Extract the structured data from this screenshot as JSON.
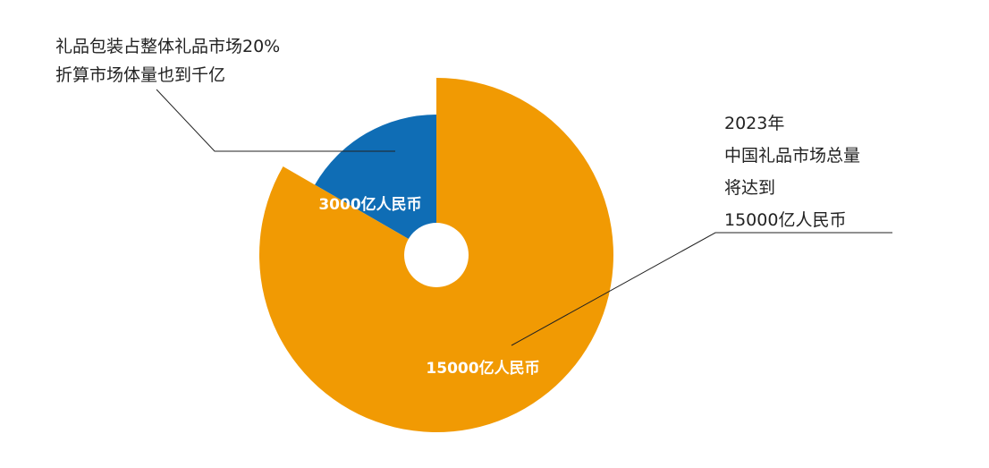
{
  "chart_data": {
    "type": "pie",
    "variant": "exploded-donut",
    "slices": [
      {
        "label": "3000亿人民币",
        "value": 3000,
        "color": "#0F6DB5"
      },
      {
        "label": "15000亿人民币",
        "value": 15000,
        "color": "#F19A03"
      }
    ],
    "annotations": {
      "left": [
        "礼品包装占整体礼品市场20%",
        "折算市场体量也到千亿"
      ],
      "right": [
        "2023年",
        "中国礼品市场总量",
        "将达到",
        "15000亿人民币"
      ]
    },
    "legend": "none"
  }
}
